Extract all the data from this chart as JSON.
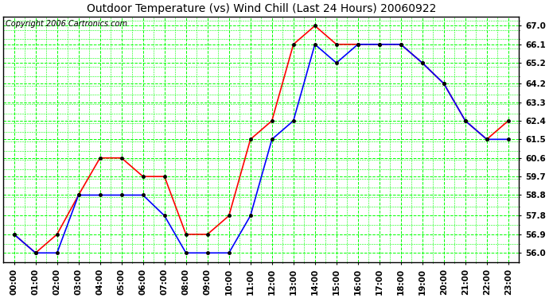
{
  "title": "Outdoor Temperature (vs) Wind Chill (Last 24 Hours) 20060922",
  "copyright": "Copyright 2006 Cartronics.com",
  "x_labels": [
    "00:00",
    "01:00",
    "02:00",
    "03:00",
    "04:00",
    "05:00",
    "06:00",
    "07:00",
    "08:00",
    "09:00",
    "10:00",
    "11:00",
    "12:00",
    "13:00",
    "14:00",
    "15:00",
    "16:00",
    "17:00",
    "18:00",
    "19:00",
    "20:00",
    "21:00",
    "22:00",
    "23:00"
  ],
  "y_ticks": [
    56.0,
    56.9,
    57.8,
    58.8,
    59.7,
    60.6,
    61.5,
    62.4,
    63.3,
    64.2,
    65.2,
    66.1,
    67.0
  ],
  "ylim_low": 55.55,
  "ylim_high": 67.45,
  "temp": [
    56.9,
    56.0,
    56.9,
    58.8,
    60.6,
    60.6,
    59.7,
    59.7,
    56.9,
    56.9,
    57.8,
    61.5,
    62.4,
    66.1,
    67.0,
    66.1,
    66.1,
    66.1,
    66.1,
    65.2,
    64.2,
    62.4,
    61.5,
    62.4
  ],
  "wind_chill": [
    56.9,
    56.0,
    56.0,
    58.8,
    58.8,
    58.8,
    58.8,
    57.8,
    56.0,
    56.0,
    56.0,
    57.8,
    61.5,
    62.4,
    66.1,
    65.2,
    66.1,
    66.1,
    66.1,
    65.2,
    64.2,
    62.4,
    61.5,
    61.5
  ],
  "temp_color": "#ff0000",
  "wind_chill_color": "#0000ff",
  "marker_color": "#000000",
  "grid_color": "#00ff00",
  "bg_color": "#ffffff",
  "title_color": "#000000",
  "title_fontsize": 10,
  "copyright_fontsize": 7,
  "tick_fontsize": 7.5,
  "line_width": 1.2,
  "marker_size": 2.5
}
